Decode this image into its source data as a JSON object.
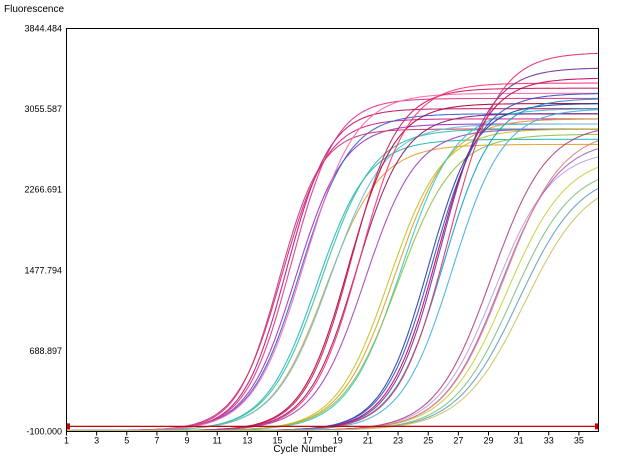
{
  "chart_data": {
    "type": "line",
    "title": "",
    "ylabel": "Fluorescence",
    "xlabel": "Cycle Number",
    "xlim": [
      1,
      36.3
    ],
    "ylim": [
      -100.0,
      3844.484
    ],
    "grid": false,
    "legend": "none",
    "y_tick_labels": [
      "3844.484",
      "3055.587",
      "2266.691",
      "1477.794",
      "688.897",
      "-100.000"
    ],
    "y_tick_values": [
      3844.484,
      3055.587,
      2266.691,
      1477.794,
      688.897,
      -100.0
    ],
    "x_tick_labels": [
      "1",
      "3",
      "5",
      "7",
      "9",
      "11",
      "13",
      "15",
      "17",
      "19",
      "21",
      "23",
      "25",
      "27",
      "29",
      "31",
      "33",
      "35"
    ],
    "x_tick_values": [
      1,
      3,
      5,
      7,
      9,
      11,
      13,
      15,
      17,
      19,
      21,
      23,
      25,
      27,
      29,
      31,
      33,
      35
    ],
    "threshold": {
      "value": -50,
      "color": "#cc0000"
    },
    "curve_model": "sigmoid: y = baseline + plateau / (1 + exp(-(x - midpoint) / slope))",
    "series": [
      {
        "color": "#c0106a",
        "midpoint": 15.6,
        "plateau": 3150,
        "slope": 1.45,
        "baseline": -90
      },
      {
        "color": "#d02090",
        "midpoint": 15.3,
        "plateau": 3050,
        "slope": 1.5,
        "baseline": -90
      },
      {
        "color": "#e0308a",
        "midpoint": 15.9,
        "plateau": 3250,
        "slope": 1.5,
        "baseline": -90
      },
      {
        "color": "#9b30c8",
        "midpoint": 16.2,
        "plateau": 3000,
        "slope": 1.6,
        "baseline": -90
      },
      {
        "color": "#3060d0",
        "midpoint": 16.5,
        "plateau": 3100,
        "slope": 1.65,
        "baseline": -90
      },
      {
        "color": "#c83c64",
        "midpoint": 15.1,
        "plateau": 2950,
        "slope": 1.4,
        "baseline": -90
      },
      {
        "color": "#ff66aa",
        "midpoint": 16.8,
        "plateau": 3300,
        "slope": 1.7,
        "baseline": -90
      },
      {
        "color": "#20b8b8",
        "midpoint": 17.6,
        "plateau": 2850,
        "slope": 1.7,
        "baseline": -90
      },
      {
        "color": "#30c0a0",
        "midpoint": 17.9,
        "plateau": 2950,
        "slope": 1.75,
        "baseline": -90
      },
      {
        "color": "#e6a030",
        "midpoint": 18.2,
        "plateau": 2800,
        "slope": 1.8,
        "baseline": -90
      },
      {
        "color": "#60c0e0",
        "midpoint": 18.5,
        "plateau": 3000,
        "slope": 1.85,
        "baseline": -90
      },
      {
        "color": "#b00030",
        "midpoint": 19.7,
        "plateau": 3200,
        "slope": 1.55,
        "baseline": -90
      },
      {
        "color": "#d01858",
        "midpoint": 19.9,
        "plateau": 3350,
        "slope": 1.55,
        "baseline": -90
      },
      {
        "color": "#8a1a6a",
        "midpoint": 20.2,
        "plateau": 3100,
        "slope": 1.6,
        "baseline": -90
      },
      {
        "color": "#ff3070",
        "midpoint": 20.5,
        "plateau": 3400,
        "slope": 1.6,
        "baseline": -90
      },
      {
        "color": "#a040c0",
        "midpoint": 20.8,
        "plateau": 2950,
        "slope": 1.7,
        "baseline": -90
      },
      {
        "color": "#c8c020",
        "midpoint": 22.4,
        "plateau": 2950,
        "slope": 1.75,
        "baseline": -90
      },
      {
        "color": "#d8a030",
        "midpoint": 22.8,
        "plateau": 3050,
        "slope": 1.8,
        "baseline": -90
      },
      {
        "color": "#30c8c8",
        "midpoint": 23.2,
        "plateau": 3150,
        "slope": 1.8,
        "baseline": -90
      },
      {
        "color": "#90c040",
        "midpoint": 23.0,
        "plateau": 2900,
        "slope": 1.85,
        "baseline": -90
      },
      {
        "color": "#2040a0",
        "midpoint": 25.0,
        "plateau": 3200,
        "slope": 1.55,
        "baseline": -90
      },
      {
        "color": "#3050c8",
        "midpoint": 25.3,
        "plateau": 3300,
        "slope": 1.6,
        "baseline": -90
      },
      {
        "color": "#c00060",
        "midpoint": 25.6,
        "plateau": 3450,
        "slope": 1.6,
        "baseline": -90
      },
      {
        "color": "#00a0d0",
        "midpoint": 26.0,
        "plateau": 3250,
        "slope": 1.65,
        "baseline": -90
      },
      {
        "color": "#7030a0",
        "midpoint": 25.8,
        "plateau": 3550,
        "slope": 1.6,
        "baseline": -90
      },
      {
        "color": "#e03060",
        "midpoint": 26.3,
        "plateau": 3700,
        "slope": 1.65,
        "baseline": -90
      },
      {
        "color": "#40b0e0",
        "midpoint": 26.6,
        "plateau": 3150,
        "slope": 1.7,
        "baseline": -90
      },
      {
        "color": "#c0a0e0",
        "midpoint": 29.4,
        "plateau": 2750,
        "slope": 1.9,
        "baseline": -90
      },
      {
        "color": "#a060c0",
        "midpoint": 29.8,
        "plateau": 2850,
        "slope": 1.9,
        "baseline": -90
      },
      {
        "color": "#c8d040",
        "midpoint": 30.2,
        "plateau": 2700,
        "slope": 2.0,
        "baseline": -90
      },
      {
        "color": "#80c080",
        "midpoint": 30.6,
        "plateau": 2600,
        "slope": 2.0,
        "baseline": -90
      },
      {
        "color": "#e08080",
        "midpoint": 30.0,
        "plateau": 2950,
        "slope": 1.95,
        "baseline": -90
      },
      {
        "color": "#b04080",
        "midpoint": 29.2,
        "plateau": 3000,
        "slope": 1.85,
        "baseline": -90
      },
      {
        "color": "#60a0c0",
        "midpoint": 31.0,
        "plateau": 2550,
        "slope": 2.05,
        "baseline": -90
      },
      {
        "color": "#d0c060",
        "midpoint": 31.4,
        "plateau": 2500,
        "slope": 2.1,
        "baseline": -90
      }
    ]
  }
}
